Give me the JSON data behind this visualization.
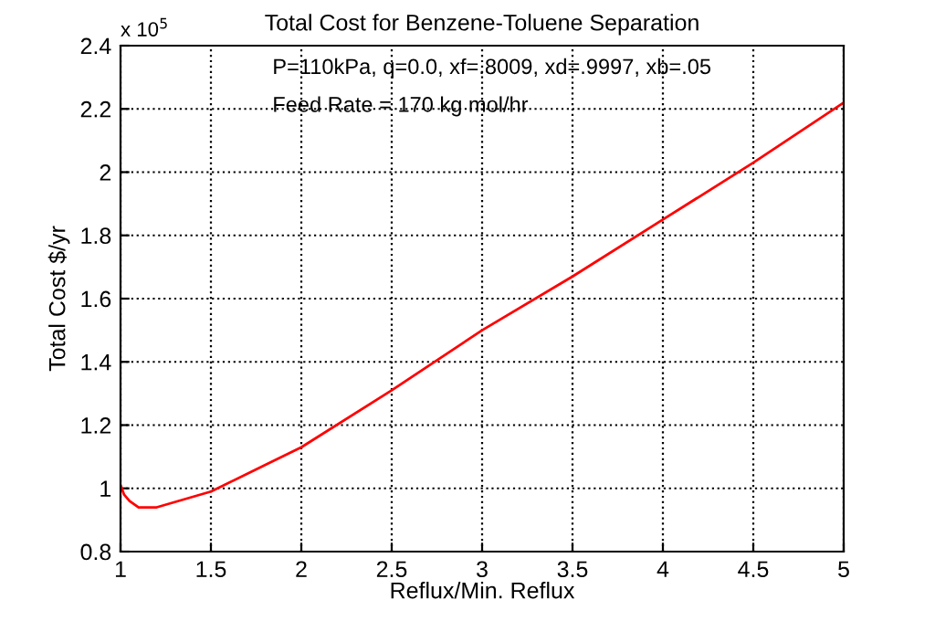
{
  "chart_data": {
    "type": "line",
    "title": "Total Cost for Benzene-Toluene Separation",
    "xlabel": "Reflux/Min. Reflux",
    "ylabel": "Total Cost $/yr",
    "annotations": [
      "x 10$^{5}$",
      "P=110kPa, q=0.0, xf=.8009, xd=.9997, xb=.05",
      "Feed Rate = 170 kg mol/hr"
    ],
    "x": [
      1,
      1.02,
      1.05,
      1.1,
      1.2,
      1.5,
      1.75,
      2,
      2.5,
      3,
      3.5,
      4,
      4.5,
      5
    ],
    "series": [
      {
        "color": "#ff0000",
        "values": [
          1.01,
          0.98,
          0.96,
          0.94,
          0.94,
          0.99,
          1.06,
          1.13,
          1.31,
          1.5,
          1.67,
          1.85,
          2.03,
          2.22
        ]
      }
    ],
    "xlim": [
      1,
      5
    ],
    "ylim": [
      0.8,
      2.4
    ],
    "xticks": [
      1,
      1.5,
      2,
      2.5,
      3,
      3.5,
      4,
      4.5,
      5
    ],
    "yticks": [
      0.8,
      1,
      1.2,
      1.4,
      1.6,
      1.8,
      2,
      2.2,
      2.4
    ],
    "grid": true,
    "legend": false,
    "marker": "none",
    "line_style": "solid"
  }
}
